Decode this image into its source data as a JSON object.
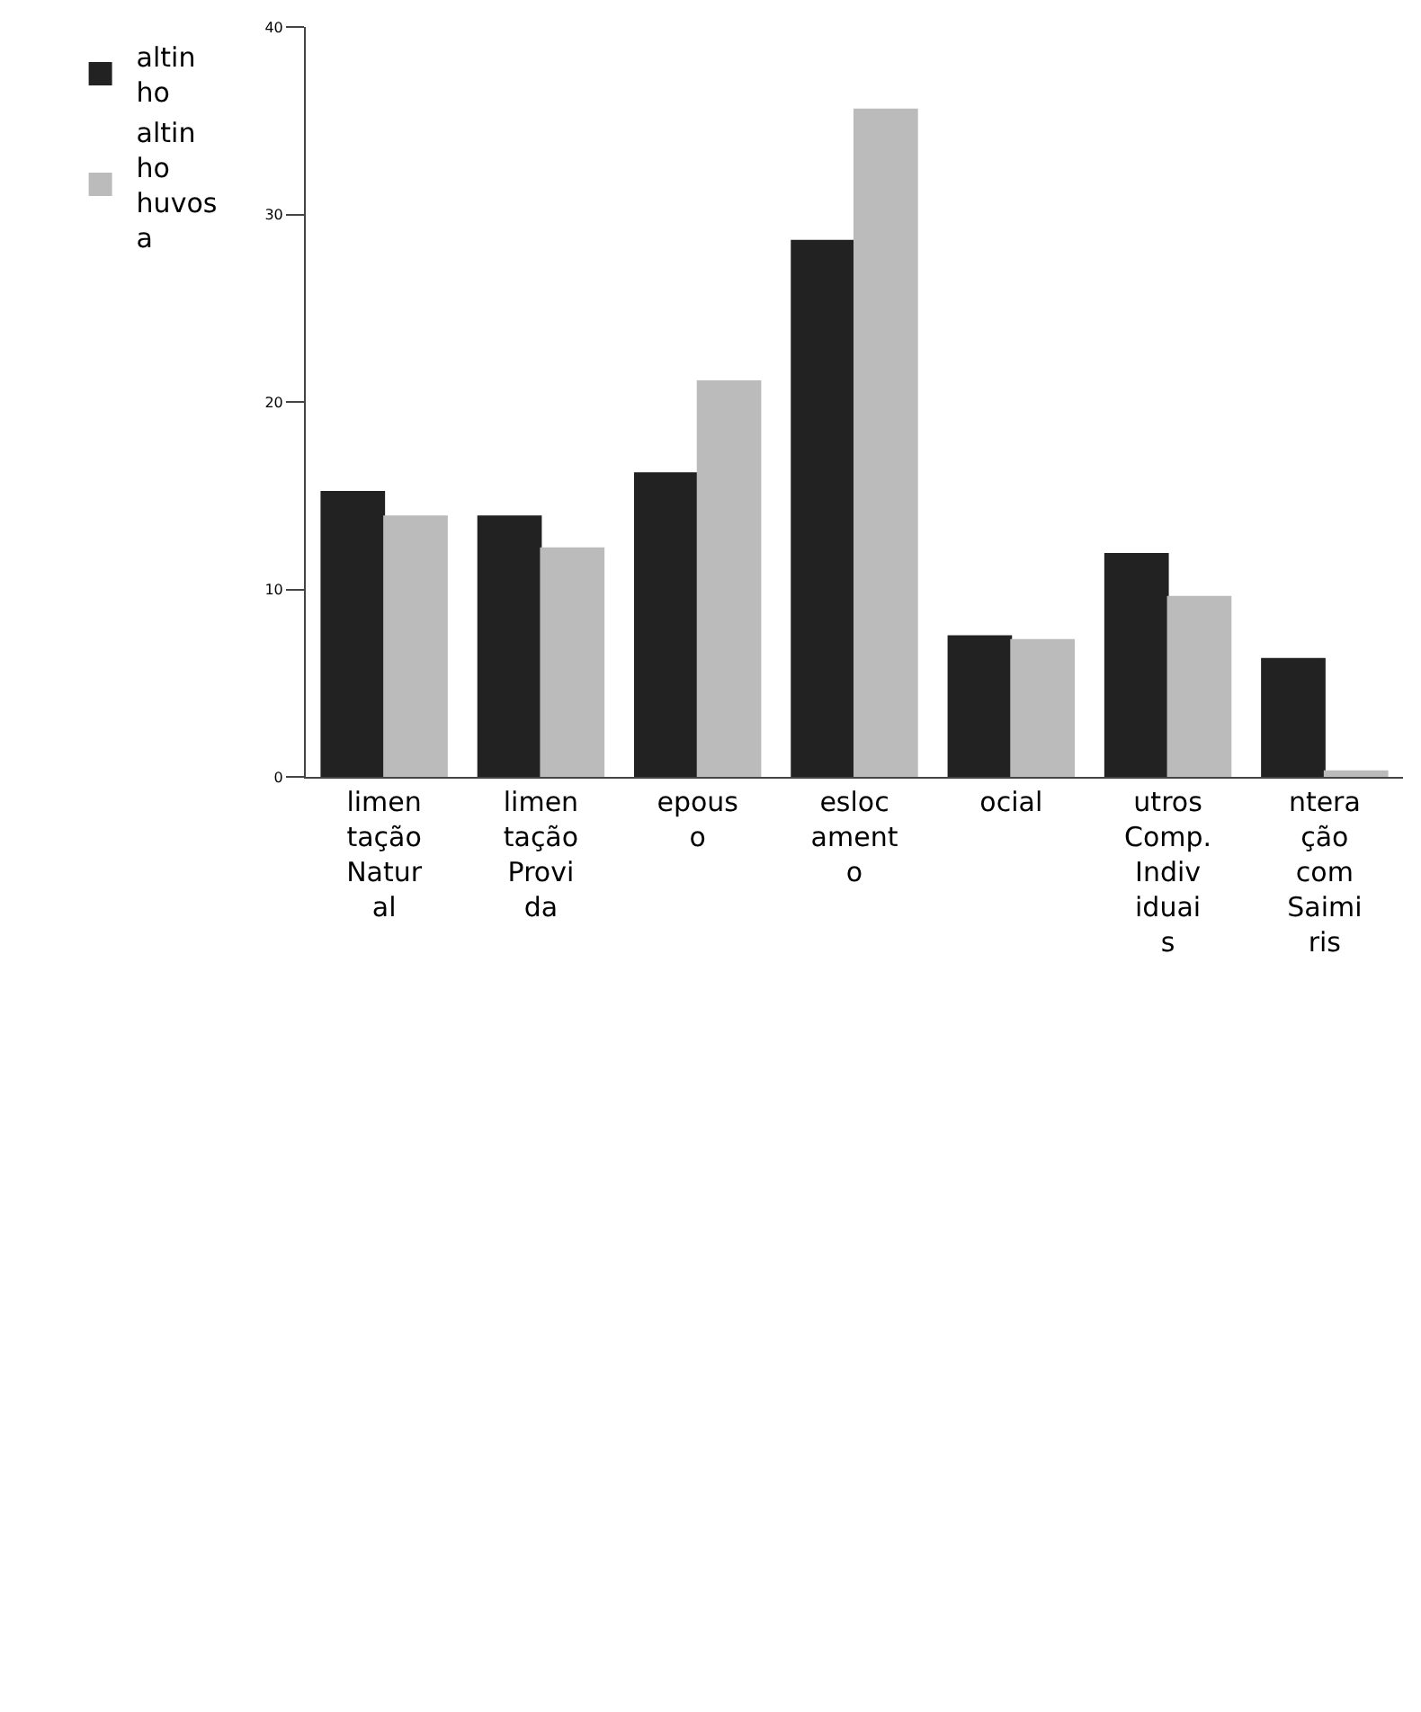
{
  "chart_data": {
    "type": "bar",
    "categories": [
      "limentação Natural",
      "limentação Provida",
      "epouso",
      "eslocamento",
      "ocial",
      "utros Comp. Individuais",
      "nteração com Saimiris"
    ],
    "series": [
      {
        "name": "altinho",
        "color": "#222222",
        "values": [
          15.2,
          13.9,
          16.2,
          28.6,
          7.5,
          11.9,
          6.3
        ]
      },
      {
        "name": "altinho huvosa",
        "color": "#bbbbbb",
        "values": [
          13.9,
          12.2,
          21.1,
          35.6,
          7.3,
          9.6,
          0.3
        ]
      }
    ],
    "ylim": [
      0,
      40
    ],
    "yticks": [
      0,
      10,
      20,
      30,
      40
    ],
    "legend": "left"
  }
}
